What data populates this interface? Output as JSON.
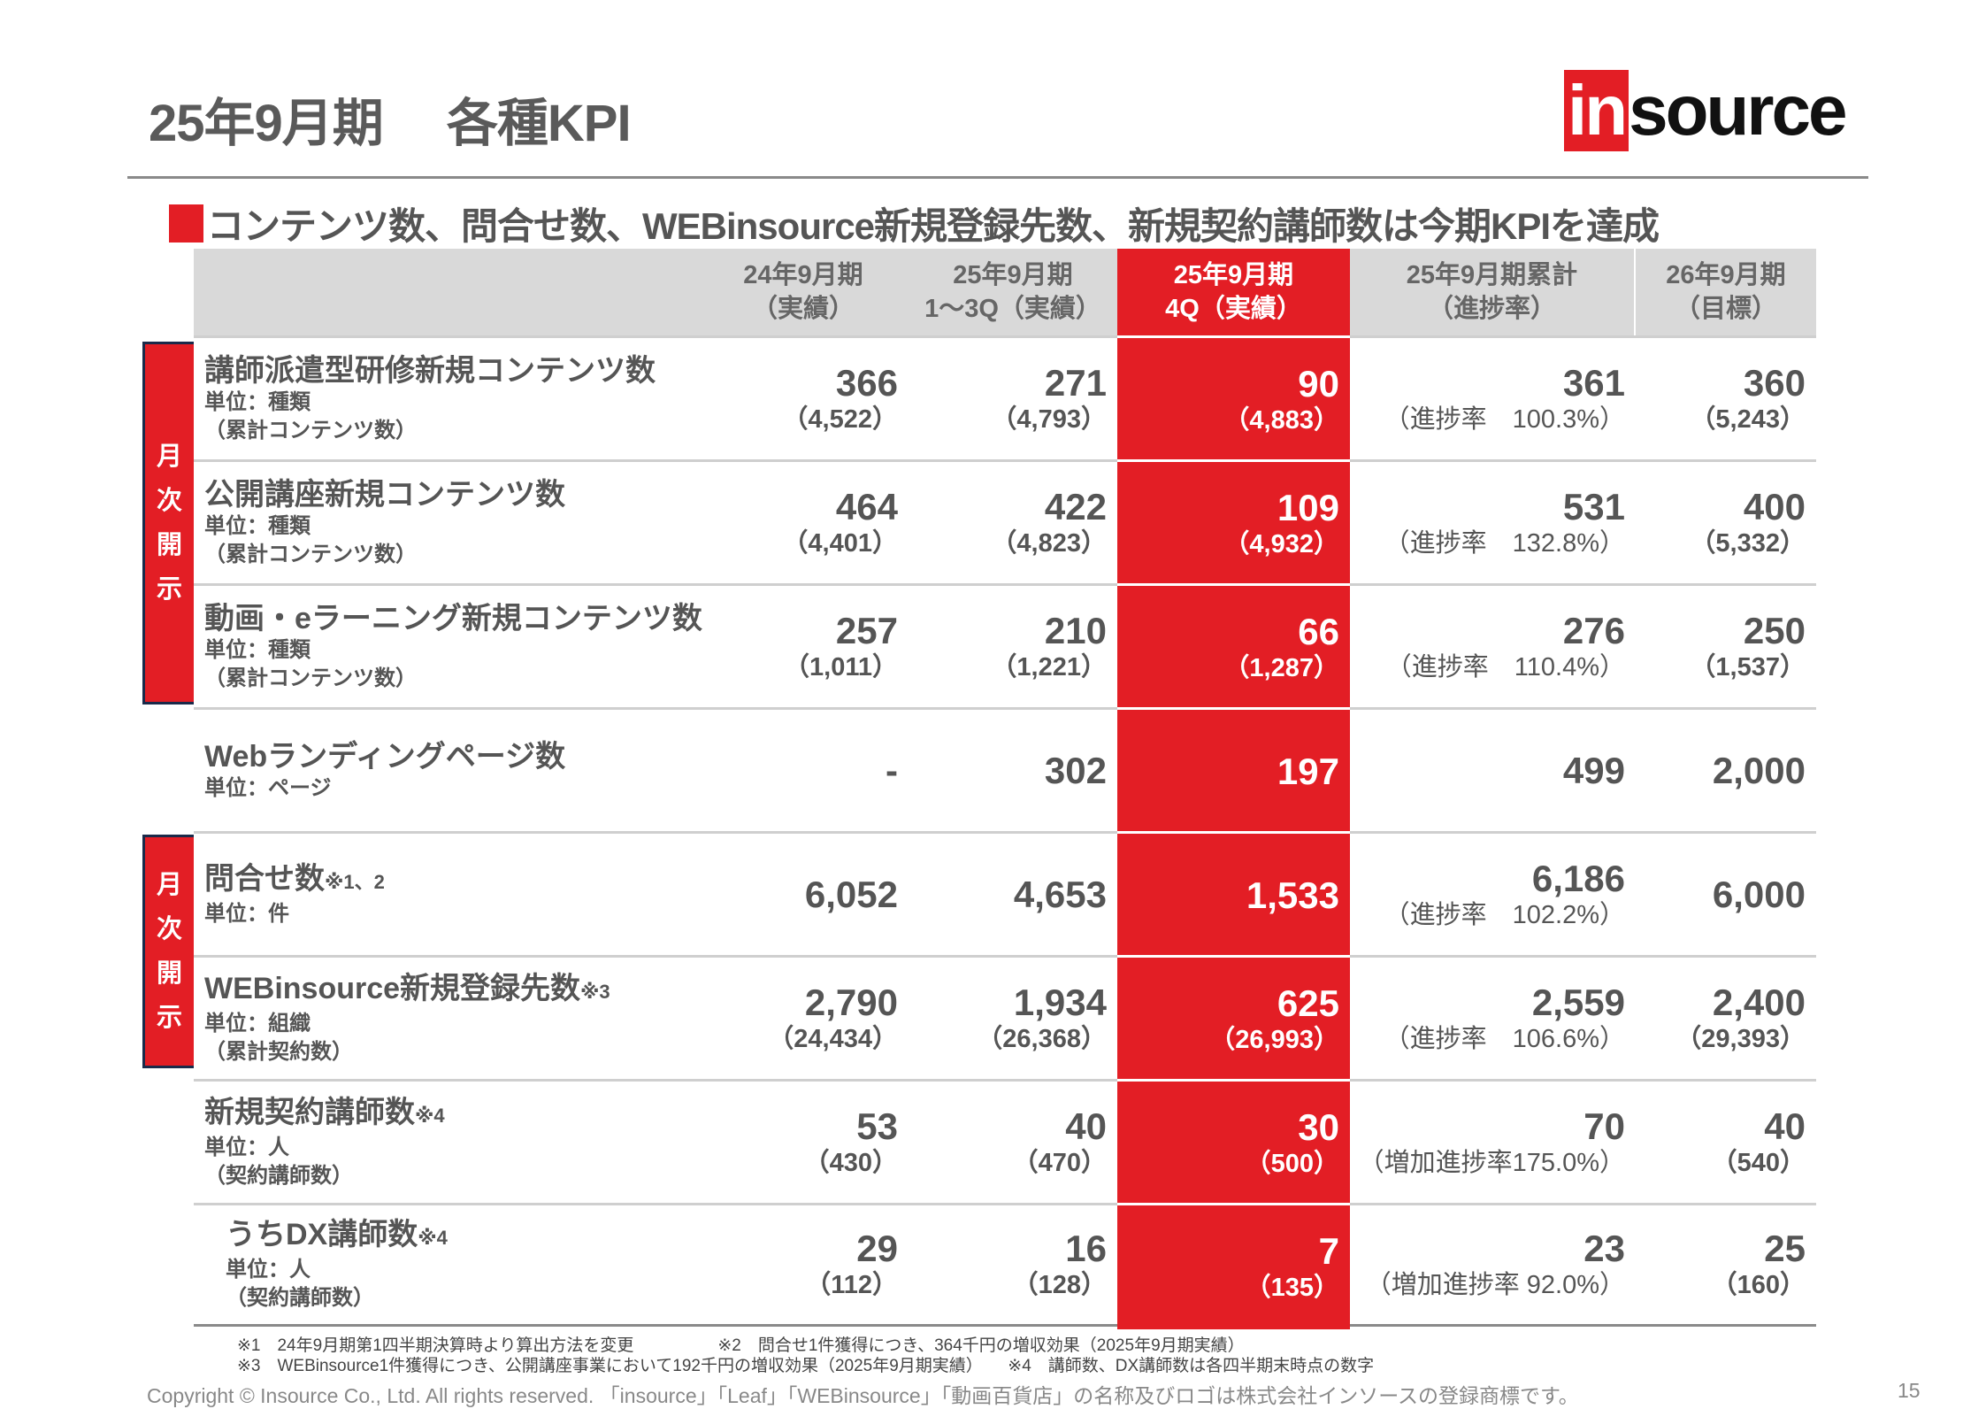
{
  "title": "25年9月期　 各種KPI",
  "logo": {
    "in": "in",
    "source": "source"
  },
  "subtitle": "コンテンツ数、問合せ数、WEBinsource新規登録先数、新規契約講師数は今期KPIを達成",
  "header": [
    [
      "",
      ""
    ],
    [
      "24年9月期",
      "（実績）"
    ],
    [
      "25年9月期",
      "1～3Q（実績）"
    ],
    [
      "25年9月期",
      "4Q（実績）"
    ],
    [
      "25年9月期累計",
      "（進捗率）"
    ],
    [
      "26年9月期",
      "（目標）"
    ]
  ],
  "side_labels": {
    "monthly_1": [
      "月",
      "次",
      "開",
      "示"
    ],
    "monthly_2": [
      "月",
      "次",
      "開",
      "示"
    ]
  },
  "rows": [
    {
      "title": "講師派遣型研修新規コンテンツ数",
      "note": "",
      "unit": "単位：種類",
      "sub": "（累計コンテンツ数）",
      "v": [
        [
          "366",
          "（4,522）"
        ],
        [
          "271",
          "（4,793）"
        ],
        [
          "90",
          "（4,883）"
        ],
        [
          "361",
          "（進捗率　100.3%）"
        ],
        [
          "360",
          "（5,243）"
        ]
      ]
    },
    {
      "title": "公開講座新規コンテンツ数",
      "note": "",
      "unit": "単位：種類",
      "sub": "（累計コンテンツ数）",
      "v": [
        [
          "464",
          "（4,401）"
        ],
        [
          "422",
          "（4,823）"
        ],
        [
          "109",
          "（4,932）"
        ],
        [
          "531",
          "（進捗率　132.8%）"
        ],
        [
          "400",
          "（5,332）"
        ]
      ]
    },
    {
      "title": "動画・eラーニング新規コンテンツ数",
      "note": "",
      "unit": "単位：種類",
      "sub": "（累計コンテンツ数）",
      "v": [
        [
          "257",
          "（1,011）"
        ],
        [
          "210",
          "（1,221）"
        ],
        [
          "66",
          "（1,287）"
        ],
        [
          "276",
          "（進捗率　110.4%）"
        ],
        [
          "250",
          "（1,537）"
        ]
      ]
    },
    {
      "title": "Webランディングページ数",
      "note": "",
      "unit": "単位：ページ",
      "sub": "",
      "v": [
        [
          "-",
          ""
        ],
        [
          "302",
          ""
        ],
        [
          "197",
          ""
        ],
        [
          "499",
          ""
        ],
        [
          "2,000",
          ""
        ]
      ]
    },
    {
      "title": "問合せ数",
      "note": "※1、2",
      "unit": "単位：件",
      "sub": "",
      "v": [
        [
          "6,052",
          ""
        ],
        [
          "4,653",
          ""
        ],
        [
          "1,533",
          ""
        ],
        [
          "6,186",
          "（進捗率　102.2%）"
        ],
        [
          "6,000",
          ""
        ]
      ]
    },
    {
      "title": "WEBinsource新規登録先数",
      "note": "※3",
      "unit": "単位：組織",
      "sub": "（累計契約数）",
      "v": [
        [
          "2,790",
          "（24,434）"
        ],
        [
          "1,934",
          "（26,368）"
        ],
        [
          "625",
          "（26,993）"
        ],
        [
          "2,559",
          "（進捗率　106.6%）"
        ],
        [
          "2,400",
          "（29,393）"
        ]
      ]
    },
    {
      "title": "新規契約講師数",
      "note": "※4",
      "unit": "単位：人",
      "sub": "（契約講師数）",
      "v": [
        [
          "53",
          "（430）"
        ],
        [
          "40",
          "（470）"
        ],
        [
          "30",
          "（500）"
        ],
        [
          "70",
          "（増加進捗率175.0%）"
        ],
        [
          "40",
          "（540）"
        ]
      ]
    },
    {
      "title": "うちDX講師数",
      "note": "※4",
      "unit": "単位：人",
      "sub": "（契約講師数）",
      "v": [
        [
          "29",
          "（112）"
        ],
        [
          "16",
          "（128）"
        ],
        [
          "7",
          "（135）"
        ],
        [
          "23",
          "（増加進捗率 92.0%）"
        ],
        [
          "25",
          "（160）"
        ]
      ]
    }
  ],
  "footnotes": [
    "※1　24年9月期第1四半期決算時より算出方法を変更　　　　　※2　問合せ1件獲得につき、364千円の増収効果（2025年9月期実績）",
    "※3　WEBinsource1件獲得につき、公開講座事業において192千円の増収効果（2025年9月期実績）　　※4　講師数、DX講師数は各四半期末時点の数字"
  ],
  "copyright": "Copyright © Insource Co., Ltd. All rights reserved. 「insource」「Leaf」「WEBinsource」「動画百貨店」の名称及びロゴは株式会社インソースの登録商標です。",
  "page_number": "15"
}
